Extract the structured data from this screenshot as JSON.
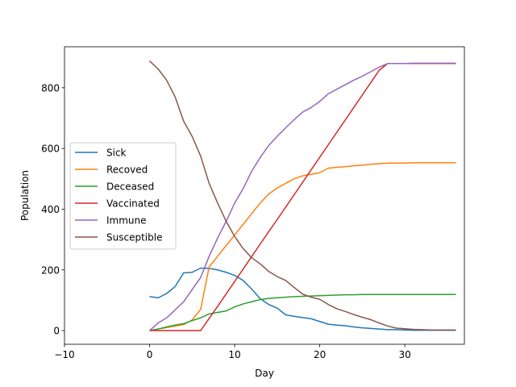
{
  "chart_data": {
    "type": "line",
    "title": "",
    "xlabel": "Day",
    "ylabel": "Population",
    "xlim": [
      -10,
      37
    ],
    "ylim": [
      -45,
      935
    ],
    "xticks": [
      -10,
      0,
      10,
      20,
      30
    ],
    "yticks": [
      0,
      200,
      400,
      600,
      800
    ],
    "grid": false,
    "legend_position": "center-left",
    "x": [
      0,
      1,
      2,
      3,
      4,
      5,
      6,
      7,
      8,
      9,
      10,
      11,
      12,
      13,
      14,
      15,
      16,
      17,
      18,
      19,
      20,
      21,
      22,
      23,
      24,
      25,
      26,
      27,
      28,
      29,
      30,
      31,
      32,
      33,
      34,
      35,
      36
    ],
    "series": [
      {
        "name": "Sick",
        "color": "#1f77b4",
        "values": [
          112,
          108,
          122,
          145,
          190,
          192,
          206,
          205,
          200,
          192,
          182,
          165,
          137,
          105,
          86,
          74,
          52,
          47,
          43,
          39,
          30,
          21,
          18,
          16,
          12,
          9,
          7,
          5,
          3,
          3,
          2,
          1,
          1,
          1,
          1,
          1,
          1
        ]
      },
      {
        "name": "Recoved",
        "color": "#ff7f0e",
        "values": [
          0,
          5,
          10,
          15,
          20,
          35,
          70,
          210,
          245,
          280,
          315,
          350,
          385,
          420,
          450,
          470,
          485,
          500,
          510,
          515,
          520,
          535,
          538,
          540,
          543,
          545,
          548,
          550,
          552,
          552,
          552,
          553,
          553,
          553,
          553,
          553,
          553
        ]
      },
      {
        "name": "Deceased",
        "color": "#2ca02c",
        "values": [
          0,
          5,
          12,
          18,
          23,
          33,
          42,
          55,
          60,
          65,
          78,
          88,
          95,
          102,
          106,
          108,
          110,
          112,
          113,
          114,
          115,
          116,
          117,
          118,
          118,
          119,
          119,
          119,
          119,
          119,
          119,
          119,
          119,
          119,
          119,
          119,
          119
        ]
      },
      {
        "name": "Vaccinated",
        "color": "#d62728",
        "values": [
          0,
          0,
          0,
          0,
          0,
          0,
          0,
          40,
          80,
          121,
          162,
          203,
          244,
          285,
          326,
          366,
          407,
          448,
          489,
          530,
          571,
          612,
          653,
          694,
          735,
          776,
          817,
          858,
          880,
          880,
          880,
          880,
          880,
          880,
          880,
          880,
          880
        ]
      },
      {
        "name": "Immune",
        "color": "#9467bd",
        "values": [
          0,
          25,
          42,
          68,
          95,
          135,
          175,
          245,
          305,
          360,
          420,
          468,
          525,
          570,
          610,
          640,
          668,
          695,
          720,
          735,
          755,
          780,
          795,
          810,
          825,
          838,
          853,
          868,
          880,
          880,
          880,
          881,
          881,
          881,
          881,
          881,
          881
        ]
      },
      {
        "name": "Susceptible",
        "color": "#8c564b",
        "values": [
          888,
          862,
          825,
          770,
          690,
          640,
          575,
          485,
          420,
          360,
          310,
          270,
          240,
          220,
          195,
          178,
          165,
          142,
          120,
          110,
          103,
          86,
          72,
          63,
          53,
          44,
          36,
          25,
          15,
          8,
          6,
          4,
          3,
          2,
          2,
          2,
          2
        ]
      }
    ]
  }
}
